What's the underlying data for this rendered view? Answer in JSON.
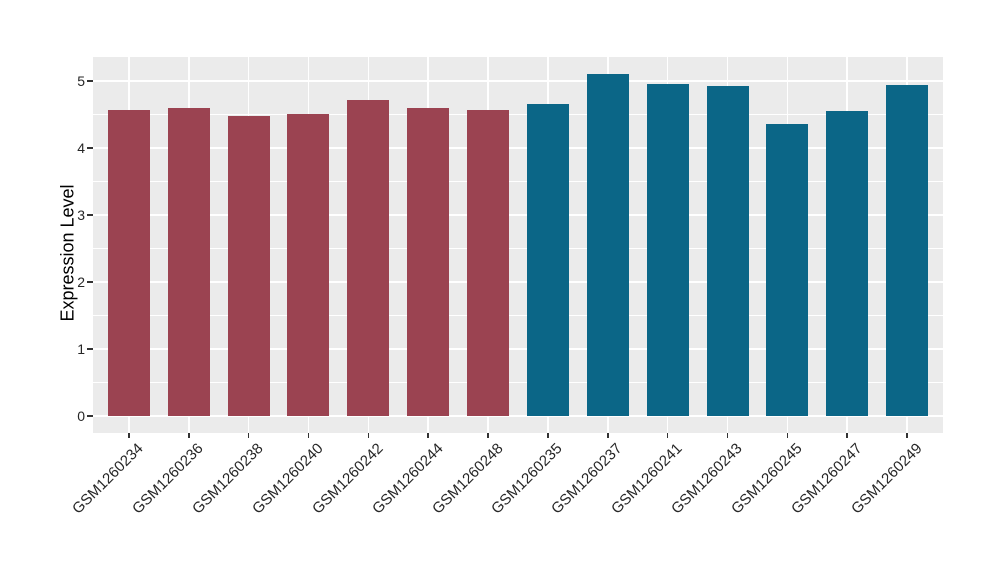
{
  "chart_data": {
    "type": "bar",
    "title": "",
    "xlabel": "",
    "ylabel": "Expression Level",
    "yticks": [
      0,
      1,
      2,
      3,
      4,
      5
    ],
    "yminor": [
      0.5,
      1.5,
      2.5,
      3.5,
      4.5
    ],
    "ylim": [
      0,
      5.36
    ],
    "grid": "white major and minor horizontal gridlines, white vertical gridlines at category centers, ggplot-style gray panel",
    "legend_position": "none",
    "panel_bg": "#EBEBEB",
    "grid_color": "#FFFFFF",
    "axis_text_color": "#262626",
    "categories": [
      "GSM1260234",
      "GSM1260236",
      "GSM1260238",
      "GSM1260240",
      "GSM1260242",
      "GSM1260244",
      "GSM1260248",
      "GSM1260235",
      "GSM1260237",
      "GSM1260241",
      "GSM1260243",
      "GSM1260245",
      "GSM1260247",
      "GSM1260249"
    ],
    "values": [
      4.57,
      4.6,
      4.48,
      4.5,
      4.71,
      4.59,
      4.56,
      4.66,
      5.1,
      4.95,
      4.93,
      4.36,
      4.55,
      4.94
    ],
    "bar_colors": [
      "#9B4351",
      "#9B4351",
      "#9B4351",
      "#9B4351",
      "#9B4351",
      "#9B4351",
      "#9B4351",
      "#0B6687",
      "#0B6687",
      "#0B6687",
      "#0B6687",
      "#0B6687",
      "#0B6687",
      "#0B6687"
    ],
    "group_colors": {
      "red": "#9B4351",
      "teal": "#0B6687"
    }
  }
}
